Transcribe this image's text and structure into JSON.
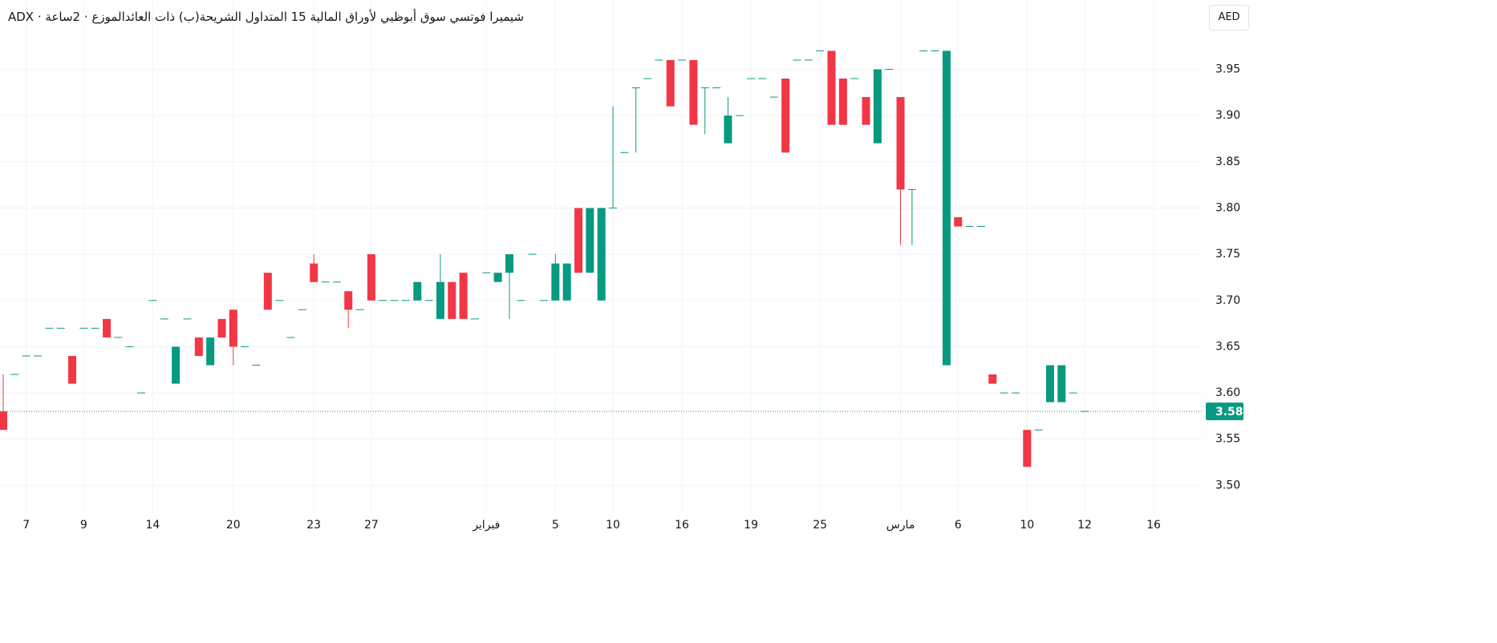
{
  "chart_data": {
    "type": "candlestick",
    "title": "ADX · شيميرا فوتسي سوق أبوظبي لأوراق المالية 15 المتداول الشريحة(ب) ذات العائدالموزع · 2ساعة",
    "currency": "AED",
    "up_color": "#089981",
    "down_color": "#f23645",
    "ylim": [
      3.47,
      4.025
    ],
    "yticks": [
      {
        "value": 3.5,
        "label": "3.50"
      },
      {
        "value": 3.55,
        "label": "3.55"
      },
      {
        "value": 3.6,
        "label": "3.60"
      },
      {
        "value": 3.65,
        "label": "3.65"
      },
      {
        "value": 3.7,
        "label": "3.70"
      },
      {
        "value": 3.75,
        "label": "3.75"
      },
      {
        "value": 3.8,
        "label": "3.80"
      },
      {
        "value": 3.85,
        "label": "3.85"
      },
      {
        "value": 3.9,
        "label": "3.90"
      },
      {
        "value": 3.95,
        "label": "3.95"
      }
    ],
    "xticks": [
      {
        "value": 2,
        "label": "7"
      },
      {
        "value": 7,
        "label": "9"
      },
      {
        "value": 13,
        "label": "14"
      },
      {
        "value": 20,
        "label": "20"
      },
      {
        "value": 27,
        "label": "23"
      },
      {
        "value": 32,
        "label": "27"
      },
      {
        "value": 42,
        "label": "فبراير"
      },
      {
        "value": 48,
        "label": "5"
      },
      {
        "value": 53,
        "label": "10"
      },
      {
        "value": 59,
        "label": "16"
      },
      {
        "value": 65,
        "label": "19"
      },
      {
        "value": 71,
        "label": "25"
      },
      {
        "value": 78,
        "label": "مارس"
      },
      {
        "value": 83,
        "label": "6"
      },
      {
        "value": 89,
        "label": "10"
      },
      {
        "value": 94,
        "label": "12"
      },
      {
        "value": 100,
        "label": "16"
      }
    ],
    "last_price": {
      "value": 3.58,
      "label": "3.58"
    },
    "grid": true,
    "ohlc": [
      [
        3.58,
        3.62,
        3.56,
        3.56
      ],
      [
        3.62,
        3.62,
        3.62,
        3.62
      ],
      [
        3.64,
        3.64,
        3.64,
        3.64
      ],
      [
        3.64,
        3.64,
        3.64,
        3.64
      ],
      [
        3.67,
        3.67,
        3.67,
        3.67
      ],
      [
        3.67,
        3.67,
        3.67,
        3.67
      ],
      [
        3.64,
        3.64,
        3.61,
        3.61
      ],
      [
        3.67,
        3.67,
        3.67,
        3.67
      ],
      [
        3.67,
        3.67,
        3.67,
        3.67
      ],
      [
        3.68,
        3.68,
        3.66,
        3.66
      ],
      [
        3.66,
        3.66,
        3.66,
        3.66
      ],
      [
        3.65,
        3.65,
        3.65,
        3.65
      ],
      [
        3.6,
        3.6,
        3.6,
        3.6
      ],
      [
        3.7,
        3.7,
        3.7,
        3.7
      ],
      [
        3.68,
        3.68,
        3.68,
        3.68
      ],
      [
        3.61,
        3.65,
        3.61,
        3.65
      ],
      [
        3.68,
        3.68,
        3.68,
        3.68
      ],
      [
        3.66,
        3.66,
        3.64,
        3.64
      ],
      [
        3.63,
        3.66,
        3.63,
        3.66
      ],
      [
        3.68,
        3.68,
        3.66,
        3.66
      ],
      [
        3.69,
        3.69,
        3.63,
        3.65
      ],
      [
        3.65,
        3.65,
        3.65,
        3.65
      ],
      [
        3.63,
        3.63,
        3.63,
        3.63
      ],
      [
        3.73,
        3.73,
        3.69,
        3.69
      ],
      [
        3.7,
        3.7,
        3.7,
        3.7
      ],
      [
        3.66,
        3.66,
        3.66,
        3.66
      ],
      [
        3.69,
        3.69,
        3.69,
        3.69
      ],
      [
        3.74,
        3.75,
        3.72,
        3.72
      ],
      [
        3.72,
        3.72,
        3.72,
        3.72
      ],
      [
        3.72,
        3.72,
        3.72,
        3.72
      ],
      [
        3.71,
        3.71,
        3.67,
        3.69
      ],
      [
        3.69,
        3.69,
        3.69,
        3.69
      ],
      [
        3.75,
        3.75,
        3.7,
        3.7
      ],
      [
        3.7,
        3.7,
        3.7,
        3.7
      ],
      [
        3.7,
        3.7,
        3.7,
        3.7
      ],
      [
        3.7,
        3.7,
        3.7,
        3.7
      ],
      [
        3.7,
        3.72,
        3.7,
        3.72
      ],
      [
        3.7,
        3.7,
        3.7,
        3.7
      ],
      [
        3.68,
        3.75,
        3.68,
        3.72
      ],
      [
        3.72,
        3.72,
        3.68,
        3.68
      ],
      [
        3.73,
        3.73,
        3.68,
        3.68
      ],
      [
        3.68,
        3.68,
        3.68,
        3.68
      ],
      [
        3.73,
        3.73,
        3.73,
        3.73
      ],
      [
        3.72,
        3.73,
        3.72,
        3.73
      ],
      [
        3.73,
        3.75,
        3.68,
        3.75
      ],
      [
        3.7,
        3.7,
        3.7,
        3.7
      ],
      [
        3.75,
        3.75,
        3.75,
        3.75
      ],
      [
        3.7,
        3.7,
        3.7,
        3.7
      ],
      [
        3.7,
        3.75,
        3.7,
        3.74
      ],
      [
        3.7,
        3.74,
        3.7,
        3.74
      ],
      [
        3.8,
        3.8,
        3.73,
        3.73
      ],
      [
        3.73,
        3.8,
        3.73,
        3.8
      ],
      [
        3.7,
        3.8,
        3.7,
        3.8
      ],
      [
        3.8,
        3.91,
        3.8,
        3.8
      ],
      [
        3.86,
        3.86,
        3.86,
        3.86
      ],
      [
        3.93,
        3.93,
        3.86,
        3.93
      ],
      [
        3.94,
        3.94,
        3.94,
        3.94
      ],
      [
        3.96,
        3.96,
        3.96,
        3.96
      ],
      [
        3.96,
        3.96,
        3.91,
        3.91
      ],
      [
        3.96,
        3.96,
        3.96,
        3.96
      ],
      [
        3.96,
        3.96,
        3.89,
        3.89
      ],
      [
        3.93,
        3.93,
        3.88,
        3.93
      ],
      [
        3.93,
        3.93,
        3.93,
        3.93
      ],
      [
        3.87,
        3.92,
        3.87,
        3.9
      ],
      [
        3.9,
        3.9,
        3.9,
        3.9
      ],
      [
        3.94,
        3.94,
        3.94,
        3.94
      ],
      [
        3.94,
        3.94,
        3.94,
        3.94
      ],
      [
        3.92,
        3.92,
        3.92,
        3.92
      ],
      [
        3.94,
        3.94,
        3.86,
        3.86
      ],
      [
        3.96,
        3.96,
        3.96,
        3.96
      ],
      [
        3.96,
        3.96,
        3.96,
        3.96
      ],
      [
        3.97,
        3.97,
        3.97,
        3.97
      ],
      [
        3.97,
        3.97,
        3.89,
        3.89
      ],
      [
        3.94,
        3.94,
        3.89,
        3.89
      ],
      [
        3.94,
        3.94,
        3.94,
        3.94
      ],
      [
        3.92,
        3.92,
        3.89,
        3.89
      ],
      [
        3.87,
        3.95,
        3.87,
        3.95
      ],
      [
        3.95,
        3.95,
        3.95,
        3.95
      ],
      [
        3.92,
        3.92,
        3.76,
        3.82
      ],
      [
        3.82,
        3.82,
        3.76,
        3.82
      ],
      [
        3.97,
        3.97,
        3.97,
        3.97
      ],
      [
        3.97,
        3.97,
        3.97,
        3.97
      ],
      [
        3.63,
        3.97,
        3.63,
        3.97
      ],
      [
        3.79,
        3.79,
        3.78,
        3.78
      ],
      [
        3.78,
        3.78,
        3.78,
        3.78
      ],
      [
        3.78,
        3.78,
        3.78,
        3.78
      ],
      [
        3.62,
        3.62,
        3.61,
        3.61
      ],
      [
        3.6,
        3.6,
        3.6,
        3.6
      ],
      [
        3.6,
        3.6,
        3.6,
        3.6
      ],
      [
        3.56,
        3.56,
        3.52,
        3.52
      ],
      [
        3.56,
        3.56,
        3.56,
        3.56
      ],
      [
        3.59,
        3.63,
        3.59,
        3.63
      ],
      [
        3.59,
        3.63,
        3.59,
        3.63
      ],
      [
        3.6,
        3.6,
        3.6,
        3.6
      ],
      [
        3.58,
        3.58,
        3.58,
        3.58
      ]
    ]
  }
}
